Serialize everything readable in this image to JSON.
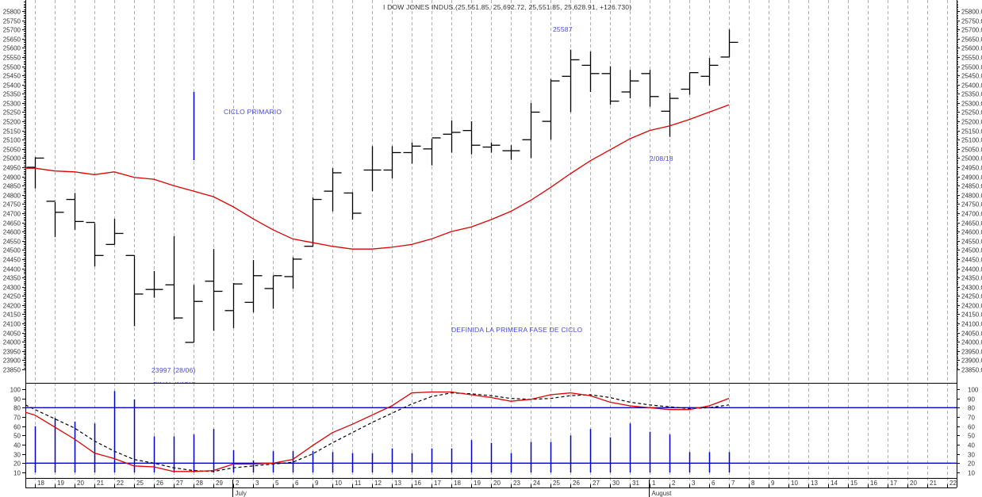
{
  "chart_data": [
    {
      "type": "ohlc",
      "title": "I DOW JONES INDUS.(25,551.85, 25,692.72, 25,551.85, 25,628.91, +126.730)",
      "xlabel": "",
      "ylabel": "",
      "ylim": [
        23830,
        25870
      ],
      "grid": "vertical dashed",
      "y_ticks": [
        25800,
        25750,
        25700,
        25650,
        25600,
        25550,
        25500,
        25450,
        25400,
        25350,
        25300,
        25250,
        25200,
        25150,
        25100,
        25050,
        25000,
        24950,
        24900,
        24850,
        24800,
        24750,
        24700,
        24650,
        24600,
        24550,
        24500,
        24450,
        24400,
        24350,
        24300,
        24250,
        24200,
        24150,
        24100,
        24050,
        24000,
        23950,
        23900,
        23850
      ],
      "categories": [
        "18",
        "19",
        "20",
        "21",
        "22",
        "25",
        "26",
        "27",
        "28",
        "29",
        "2",
        "3",
        "5",
        "6",
        "9",
        "10",
        "11",
        "12",
        "13",
        "16",
        "17",
        "18",
        "19",
        "20",
        "23",
        "24",
        "25",
        "26",
        "27",
        "30",
        "31",
        "1",
        "2",
        "3",
        "6",
        "7"
      ],
      "series": [
        {
          "name": "Price",
          "open": [
            24950,
            24765,
            24775,
            24650,
            24530,
            24470,
            24285,
            24310,
            23997,
            24330,
            24170,
            24215,
            24290,
            24355,
            24520,
            24820,
            24810,
            24935,
            24935,
            25030,
            25050,
            25130,
            25150,
            25060,
            25040,
            25100,
            25200,
            25445,
            25505,
            25460,
            25360,
            25460,
            25255,
            25375,
            25445,
            25550
          ],
          "high": [
            25005,
            24760,
            24810,
            24645,
            24670,
            24470,
            24385,
            24575,
            24310,
            24505,
            24320,
            24445,
            24360,
            24460,
            24785,
            24945,
            24815,
            25065,
            25065,
            25085,
            25105,
            25205,
            25200,
            25085,
            25070,
            25300,
            25430,
            25590,
            25580,
            25500,
            25480,
            25480,
            25355,
            25465,
            25545,
            25700
          ],
          "low": [
            24835,
            24570,
            24610,
            24410,
            24530,
            24085,
            24240,
            24120,
            23997,
            24060,
            24075,
            24160,
            24180,
            24290,
            24520,
            24710,
            24665,
            24820,
            24890,
            24970,
            24960,
            25030,
            25020,
            25030,
            24990,
            25000,
            25100,
            25250,
            25360,
            25290,
            25325,
            25280,
            25115,
            25345,
            25395,
            25550
          ],
          "close": [
            25000,
            24705,
            24655,
            24470,
            24590,
            24260,
            24285,
            24130,
            24220,
            24275,
            24315,
            24360,
            24360,
            24450,
            24775,
            24920,
            24700,
            24935,
            25030,
            25065,
            25110,
            25140,
            25070,
            25070,
            25040,
            25250,
            25420,
            25535,
            25460,
            25310,
            25420,
            25335,
            25325,
            25465,
            25505,
            25630
          ]
        },
        {
          "name": "Moving Average",
          "color": "#e00000",
          "values": [
            24945,
            24930,
            24925,
            24910,
            24925,
            24895,
            24885,
            24850,
            24820,
            24790,
            24735,
            24670,
            24610,
            24560,
            24540,
            24520,
            24505,
            24505,
            24515,
            24530,
            24560,
            24600,
            24625,
            24665,
            24710,
            24770,
            24840,
            24915,
            24985,
            25045,
            25105,
            25150,
            25175,
            25210,
            25250,
            25290
          ]
        }
      ],
      "annotations": [
        {
          "text": "25587",
          "near": "26 (July)"
        },
        {
          "text": "CICLO PRIMARIO"
        },
        {
          "text": "DEFINIDA LA PRIMERA FASE DE CICLO"
        },
        {
          "text": "23997 (28/06)"
        },
        {
          "text": "2/08/18"
        },
        {
          "text": "FINAL INICIO",
          "note": "partially clipped"
        }
      ]
    },
    {
      "type": "line+bar",
      "title": "",
      "ylim": [
        5,
        105
      ],
      "y_ticks": [
        100,
        90,
        80,
        70,
        60,
        50,
        40,
        30,
        20,
        10
      ],
      "reference_lines": [
        80,
        20
      ],
      "categories": [
        "18",
        "19",
        "20",
        "21",
        "22",
        "25",
        "26",
        "27",
        "28",
        "29",
        "2",
        "3",
        "5",
        "6",
        "9",
        "10",
        "11",
        "12",
        "13",
        "16",
        "17",
        "18",
        "19",
        "20",
        "23",
        "24",
        "25",
        "26",
        "27",
        "30",
        "31",
        "1",
        "2",
        "3",
        "6",
        "7"
      ],
      "series": [
        {
          "name": "Oscillator",
          "color": "#e00000",
          "values": [
            72,
            59,
            46,
            31,
            25,
            17,
            16,
            11,
            11,
            12,
            19,
            19,
            20,
            24,
            39,
            53,
            62,
            72,
            82,
            96,
            97,
            97,
            94,
            91,
            87,
            89,
            94,
            96,
            93,
            86,
            82,
            80,
            78,
            78,
            82,
            90
          ]
        },
        {
          "name": "Signal",
          "color": "#000000",
          "style": "dashed",
          "values": [
            78,
            68,
            58,
            44,
            33,
            24,
            20,
            15,
            12,
            11,
            15,
            17,
            19,
            21,
            30,
            42,
            53,
            64,
            74,
            84,
            92,
            96,
            95,
            93,
            90,
            89,
            90,
            93,
            94,
            91,
            86,
            83,
            81,
            79,
            80,
            83
          ]
        },
        {
          "name": "Bars",
          "color": "#0000cc",
          "values": [
            60,
            69,
            65,
            63,
            98,
            89,
            49,
            49,
            51,
            57,
            34,
            23,
            33,
            33,
            33,
            32,
            31,
            31,
            36,
            31,
            36,
            36,
            45,
            42,
            31,
            43,
            43,
            50,
            57,
            48,
            63,
            54,
            51,
            32,
            32,
            32
          ]
        }
      ]
    }
  ],
  "x_axis": {
    "day_labels": [
      "18",
      "19",
      "20",
      "21",
      "22",
      "25",
      "26",
      "27",
      "28",
      "29",
      "2",
      "3",
      "5",
      "6",
      "9",
      "10",
      "11",
      "12",
      "13",
      "16",
      "17",
      "18",
      "19",
      "20",
      "23",
      "24",
      "25",
      "26",
      "27",
      "30",
      "31",
      "1",
      "2",
      "3",
      "6",
      "7",
      "8",
      "9",
      "10",
      "13",
      "14",
      "15",
      "16",
      "17",
      "20",
      "21",
      "22"
    ],
    "month_labels": [
      {
        "label": "July",
        "index": 10
      },
      {
        "label": "August",
        "index": 31
      }
    ]
  },
  "labels": {
    "title": "I DOW JONES INDUS.(25,551.85, 25,692.72, 25,551.85, 25,628.91, +126.730)",
    "high_mark": "25587",
    "ciclo": "CICLO PRIMARIO",
    "definida": "DEFINIDA LA PRIMERA FASE DE CICLO",
    "low_mark": "23997 (28/06)",
    "date_mark": "2/08/18",
    "final": "FINAL INICIO"
  },
  "colors": {
    "ma": "#e00000",
    "ind": "#0000cc",
    "ann": "#4a4ae0",
    "grid": "#b0b0b0"
  }
}
